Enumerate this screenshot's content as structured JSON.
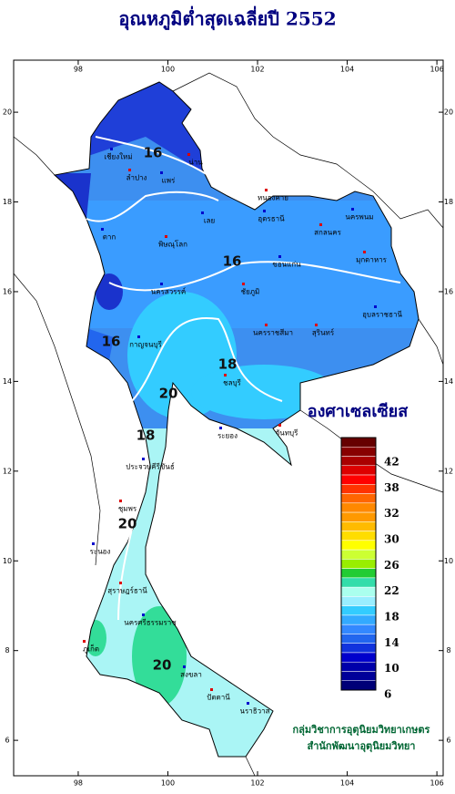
{
  "title": "อุณหภูมิต่ำสุดเฉลี่ยปี 2552",
  "map": {
    "xlim": [
      96.56,
      106.14
    ],
    "ylim": [
      5.21,
      21.16
    ],
    "xticks": [
      98,
      100,
      102,
      104,
      106
    ],
    "yticks": [
      20,
      18,
      16,
      14,
      12,
      10,
      8,
      6
    ],
    "contour_labels": [
      "16",
      "16",
      "16",
      "18",
      "20",
      "18",
      "20",
      "20"
    ],
    "places": [
      "เชียงใหม่",
      "ลำปาง",
      "แพร่",
      "น่าน",
      "ตาก",
      "พิษณุโลก",
      "เลย",
      "หนองคาย",
      "อุดรธานี",
      "สกลนคร",
      "นครพนม",
      "มุกดาหาร",
      "ขอนแก่น",
      "ชัยภูมิ",
      "นครสวรรค์",
      "นครราชสีมา",
      "อุบลราชธานี",
      "สุรินทร์",
      "กาญจนบุรี",
      "ชลบุรี",
      "ระยอง",
      "จันทบุรี",
      "ประจวบคีรีขันธ์",
      "ชุมพร",
      "ระนอง",
      "สุราษฎร์ธานี",
      "นครศรีธรรมราช",
      "ภูเก็ต",
      "สงขลา",
      "ปัตตานี",
      "นราธิวาส"
    ]
  },
  "colorbar": {
    "title": "องศาเซลเซียส",
    "labels": [
      "42",
      "38",
      "32",
      "30",
      "26",
      "22",
      "18",
      "14",
      "10",
      "6"
    ],
    "colors": [
      "#660000",
      "#880000",
      "#aa0000",
      "#dd0000",
      "#ff0000",
      "#ff3300",
      "#ff6600",
      "#ff8800",
      "#ff9900",
      "#ffbb00",
      "#ffdd00",
      "#ffff00",
      "#ccff33",
      "#99ee00",
      "#22cc33",
      "#33ddaa",
      "#aaffee",
      "#99eeff",
      "#33ccff",
      "#33aaff",
      "#3388ff",
      "#2266ee",
      "#1133dd",
      "#0000cc",
      "#0000aa",
      "#000099",
      "#000077"
    ]
  },
  "credits": [
    "กลุ่มวิชาการอุตุนิยมวิทยาเกษตร",
    "สำนักพัฒนาอุตุนิยมวิทยา"
  ]
}
